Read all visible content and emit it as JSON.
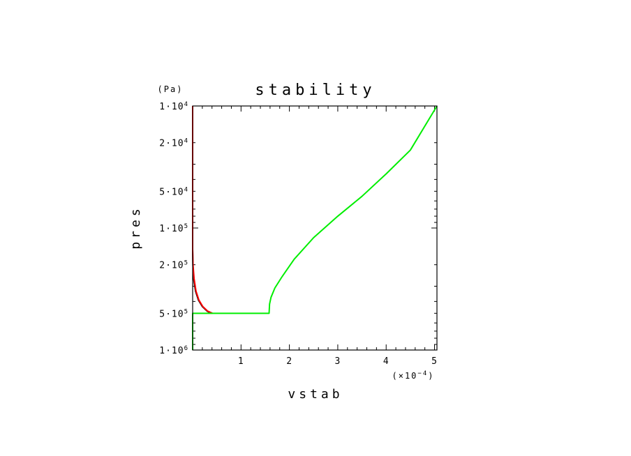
{
  "chart_data": {
    "type": "line",
    "title": "stability",
    "xlabel": "vstab",
    "ylabel": "pres",
    "x_multiplier": "(×10⁻⁴)",
    "x_multiplier_base": "(×10",
    "x_multiplier_exp": "−4",
    "y_unit": "(Pa)",
    "xlim": [
      0,
      5.05
    ],
    "ylim": [
      1000000,
      10000
    ],
    "y_scale": "log",
    "x_ticks": [
      {
        "value": 1,
        "label": "1"
      },
      {
        "value": 2,
        "label": "2"
      },
      {
        "value": 3,
        "label": "3"
      },
      {
        "value": 4,
        "label": "4"
      },
      {
        "value": 5,
        "label": "5"
      }
    ],
    "y_ticks": [
      {
        "value": 10000,
        "mant": "1·10",
        "exp": "4"
      },
      {
        "value": 20000,
        "mant": "2·10",
        "exp": "4"
      },
      {
        "value": 50000,
        "mant": "5·10",
        "exp": "4"
      },
      {
        "value": 100000,
        "mant": "1·10",
        "exp": "5"
      },
      {
        "value": 200000,
        "mant": "2·10",
        "exp": "5"
      },
      {
        "value": 500000,
        "mant": "5·10",
        "exp": "5"
      },
      {
        "value": 1000000,
        "mant": "1·10",
        "exp": "6"
      }
    ],
    "series": [
      {
        "color": "#000000",
        "points": [
          [
            0,
            10000
          ],
          [
            0,
            150000
          ],
          [
            0.005,
            200000
          ],
          [
            0.02,
            260000
          ],
          [
            0.06,
            330000
          ],
          [
            0.12,
            390000
          ],
          [
            0.2,
            440000
          ],
          [
            0.3,
            480000
          ],
          [
            0.38,
            500000
          ]
        ]
      },
      {
        "color": "#ff0000",
        "points": [
          [
            0,
            10000
          ],
          [
            0,
            150000
          ],
          [
            0.008,
            200000
          ],
          [
            0.03,
            260000
          ],
          [
            0.07,
            330000
          ],
          [
            0.13,
            390000
          ],
          [
            0.21,
            440000
          ],
          [
            0.31,
            480000
          ],
          [
            0.41,
            500000
          ]
        ]
      },
      {
        "color": "#00ee00",
        "points": [
          [
            0,
            1000000
          ],
          [
            0,
            500000
          ],
          [
            1.58,
            500000
          ],
          [
            1.59,
            420000
          ],
          [
            1.62,
            370000
          ],
          [
            1.7,
            310000
          ],
          [
            1.85,
            250000
          ],
          [
            2.1,
            180000
          ],
          [
            2.5,
            120000
          ],
          [
            3,
            80000
          ],
          [
            3.5,
            55000
          ],
          [
            4,
            36000
          ],
          [
            4.5,
            23000
          ],
          [
            5.05,
            10000
          ]
        ]
      }
    ]
  }
}
